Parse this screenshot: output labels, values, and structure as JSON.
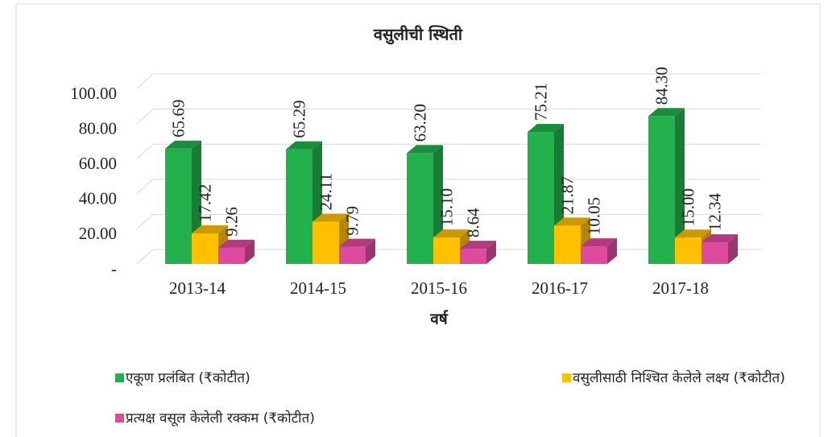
{
  "chart_data": {
    "type": "bar3d",
    "title": "वसुलीची स्थिती",
    "x_label": "वर्ष",
    "categories": [
      "2013-14",
      "2014-15",
      "2015-16",
      "2016-17",
      "2017-18"
    ],
    "series": [
      {
        "name": "एकूण प्रलंबित (₹कोटीत)",
        "color": "#22b14c",
        "values": [
          65.69,
          65.29,
          63.2,
          75.21,
          84.3
        ],
        "value_labels": [
          "65.69",
          "65.29",
          "63.20",
          "75.21",
          "84.30"
        ]
      },
      {
        "name": "वसुलीसाठी निश्चित केलेले लक्ष्य (₹कोटीत)",
        "color": "#ffc000",
        "values": [
          17.42,
          24.11,
          15.1,
          21.87,
          15.0
        ],
        "value_labels": [
          "17.42",
          "24.11",
          "15.10",
          "21.87",
          "15.00"
        ]
      },
      {
        "name": "प्रत्यक्ष वसूल केलेली रक्कम (₹कोटीत)",
        "color": "#dd4a9e",
        "values": [
          9.26,
          9.79,
          8.64,
          10.05,
          12.34
        ],
        "value_labels": [
          "9.26",
          "9.79",
          "8.64",
          "10.05",
          "12.34"
        ]
      }
    ],
    "ylim": [
      0,
      100
    ],
    "yticks": [
      {
        "value": 0,
        "label": "-"
      },
      {
        "value": 20,
        "label": "20.00"
      },
      {
        "value": 40,
        "label": "40.00"
      },
      {
        "value": 60,
        "label": "60.00"
      },
      {
        "value": 80,
        "label": "80.00"
      },
      {
        "value": 100,
        "label": "100.00"
      }
    ],
    "grid": true,
    "legend": "bottom"
  }
}
